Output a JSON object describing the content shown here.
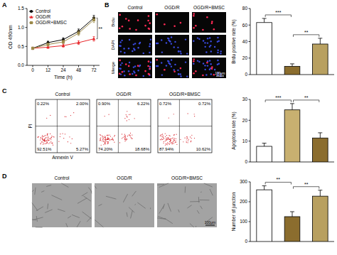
{
  "panel_labels": [
    "A",
    "B",
    "C",
    "D"
  ],
  "chart_data": [
    {
      "type": "line",
      "x_label": "Time (h)",
      "y_label": "OD 490nm",
      "categories": [
        "0",
        "12",
        "24",
        "48",
        "72"
      ],
      "series": [
        {
          "name": "Control",
          "color": "#000000",
          "marker": "circle",
          "values": [
            0.45,
            0.6,
            0.68,
            0.9,
            1.25
          ],
          "errors": [
            0.03,
            0.04,
            0.05,
            0.06,
            0.07
          ]
        },
        {
          "name": "OGD/R",
          "color": "#e8262a",
          "marker": "triangle",
          "values": [
            0.45,
            0.48,
            0.52,
            0.6,
            0.7
          ],
          "errors": [
            0.03,
            0.03,
            0.04,
            0.05,
            0.06
          ]
        },
        {
          "name": "OGD/R+BMSC",
          "color": "#9c8a4a",
          "marker": "square",
          "values": [
            0.45,
            0.55,
            0.62,
            0.85,
            1.2
          ],
          "errors": [
            0.03,
            0.04,
            0.05,
            0.06,
            0.07
          ]
        }
      ],
      "ylim": [
        0,
        1.5
      ],
      "yticks": [
        {
          "value": 0,
          "label": "0.0"
        },
        0.5,
        {
          "value": 1,
          "label": "1.0"
        },
        1.5
      ],
      "legend": "upper left",
      "significance": [
        {
          "text": "**",
          "at": 4,
          "from": 0,
          "to": 1
        }
      ]
    },
    {
      "type": "bar",
      "y_label": "Brdu positive rate (%)",
      "categories": [
        null,
        null,
        null
      ],
      "values": [
        63,
        10,
        37
      ],
      "errors": [
        5,
        3,
        7
      ],
      "colors": [
        "#ffffff",
        "#8b6d2e",
        "#b8a060"
      ],
      "ylim": [
        0,
        80
      ],
      "yticks": [
        0,
        20,
        40,
        60,
        80
      ],
      "tick_labels": "y",
      "significance": [
        {
          "text": "***",
          "from": 0,
          "to": 1
        },
        {
          "text": "**",
          "from": 1,
          "to": 2
        }
      ]
    },
    {
      "type": "bar",
      "y_label": "Apoptosis rate (%)",
      "categories": [
        null,
        null,
        null
      ],
      "values": [
        7.5,
        25,
        11.5
      ],
      "errors": [
        1.5,
        3,
        2.5
      ],
      "colors": [
        "#ffffff",
        "#c8b070",
        "#8b6d2e"
      ],
      "ylim": [
        0,
        30
      ],
      "yticks": [
        0,
        10,
        20,
        30
      ],
      "tick_labels": "y",
      "significance": [
        {
          "text": "***",
          "from": 0,
          "to": 1
        },
        {
          "text": "**",
          "from": 1,
          "to": 2
        }
      ]
    },
    {
      "type": "bar",
      "y_label": "Number of junction",
      "categories": [
        null,
        null,
        null
      ],
      "values": [
        260,
        125,
        228
      ],
      "errors": [
        20,
        25,
        30
      ],
      "colors": [
        "#ffffff",
        "#8b6d2e",
        "#b8a060"
      ],
      "ylim": [
        0,
        300
      ],
      "yticks": [
        0,
        100,
        200,
        300
      ],
      "tick_labels": "y",
      "significance": [
        {
          "text": "**",
          "from": 0,
          "to": 1
        },
        {
          "text": "**",
          "from": 1,
          "to": 2
        }
      ]
    }
  ],
  "image_panels": {
    "B": {
      "columns": [
        "Control",
        "OGD/R",
        "OGD/R+BMSC"
      ],
      "rows": [
        "Brdu",
        "DAPI",
        "Merge"
      ],
      "scale_bar": "100μm"
    },
    "C": {
      "columns": [
        "Control",
        "OGD/R",
        "OGD/R+BMSC"
      ],
      "x_label": "Annexin V",
      "y_label": "PI",
      "quadrants": [
        [
          "0.22%",
          "2.00%",
          "92.51%",
          "5.27%"
        ],
        [
          "0.90%",
          "6.22%",
          "74.20%",
          "18.68%"
        ],
        [
          "0.72%",
          "0.72%",
          "87.94%",
          "10.62%"
        ]
      ]
    },
    "D": {
      "columns": [
        "Control",
        "OGD/R",
        "OGD/R+BMSC"
      ],
      "scale_bar": "100μm"
    }
  }
}
